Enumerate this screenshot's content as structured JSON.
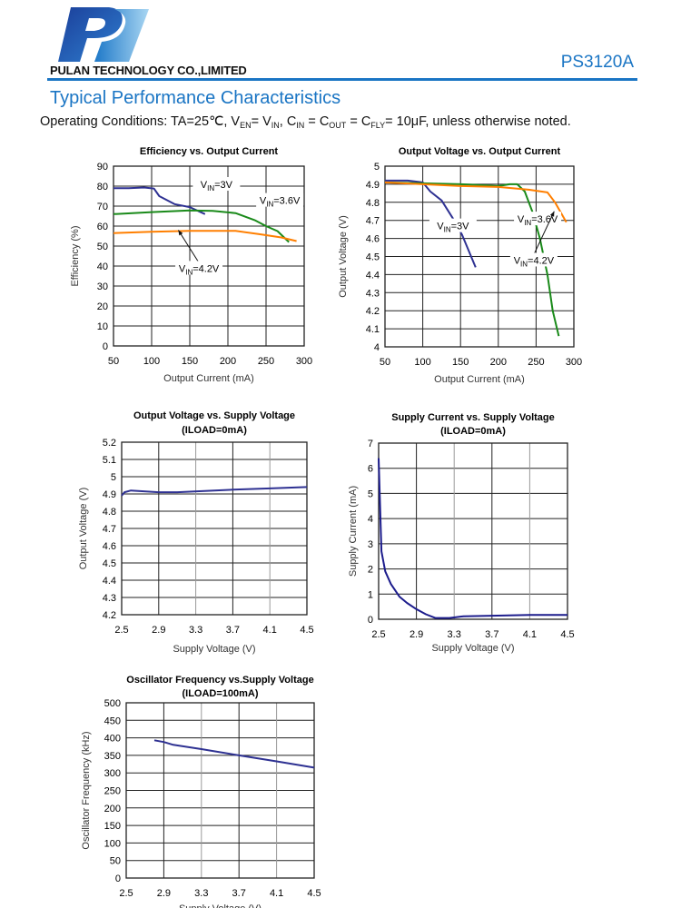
{
  "header": {
    "logo_icon": "pulan-p-logo",
    "company": "PULAN TECHNOLOGY CO.,LIMITED",
    "part_number": "PS3120A",
    "accent_color": "#1a75c4"
  },
  "section_title": "Typical Performance Characteristics",
  "operating_conditions": [
    {
      "t": "Operating Conditions: TA=25℃, V"
    },
    {
      "t": "EN",
      "sub": true
    },
    {
      "t": "= V"
    },
    {
      "t": "IN",
      "sub": true
    },
    {
      "t": ", C"
    },
    {
      "t": "IN",
      "sub": true
    },
    {
      "t": " = C"
    },
    {
      "t": "OUT",
      "sub": true
    },
    {
      "t": " = C"
    },
    {
      "t": "FLY",
      "sub": true
    },
    {
      "t": "= 10μF, unless otherwise noted."
    }
  ],
  "chart_data": [
    {
      "type": "line",
      "title": "Efficiency  vs. Output Current",
      "subtitle": "",
      "xlabel": "Output Current (mA)",
      "ylabel": "Efficiency (%)",
      "xlim": [
        50,
        300
      ],
      "ylim": [
        0,
        90
      ],
      "xticks": [
        "50",
        "100",
        "150",
        "200",
        "250",
        "300"
      ],
      "yticks": [
        "0",
        "10",
        "20",
        "30",
        "40",
        "50",
        "60",
        "70",
        "80",
        "90"
      ],
      "grid": true,
      "series": [
        {
          "name": "VIN=3V",
          "label": {
            "v": "V",
            "sub": "IN",
            "rest": "=3V"
          },
          "color": "#2e3192",
          "x": [
            50,
            70,
            90,
            103,
            110,
            130,
            150,
            170
          ],
          "y": [
            79,
            79,
            79.3,
            78.8,
            75,
            71,
            69.5,
            66
          ]
        },
        {
          "name": "VIN=3.6V",
          "label": {
            "v": "V",
            "sub": "IN",
            "rest": "=3.6V"
          },
          "color": "#1a8a1a",
          "x": [
            50,
            100,
            150,
            180,
            210,
            235,
            250,
            265,
            280
          ],
          "y": [
            66,
            67,
            67.8,
            67.6,
            66.5,
            63,
            60,
            57.5,
            52
          ]
        },
        {
          "name": "VIN=4.2V",
          "label": {
            "v": "V",
            "sub": "IN",
            "rest": "=4.2V"
          },
          "color": "#ff7f00",
          "x": [
            50,
            100,
            150,
            210,
            240,
            270,
            290
          ],
          "y": [
            56.5,
            57.2,
            57.6,
            57.6,
            56,
            54.3,
            52.5
          ]
        }
      ]
    },
    {
      "type": "line",
      "title": "Output Voltage   vs. Output Current",
      "subtitle": "",
      "xlabel": "Output Current (mA)",
      "ylabel": "Output Voltage  (V)",
      "xlim": [
        50,
        300
      ],
      "ylim": [
        4,
        5
      ],
      "xticks": [
        "50",
        "100",
        "150",
        "200",
        "250",
        "300"
      ],
      "yticks": [
        "4",
        "4.1",
        "4.2",
        "4.3",
        "4.4",
        "4.5",
        "4.6",
        "4.7",
        "4.8",
        "4.9",
        "5"
      ],
      "grid": true,
      "series": [
        {
          "name": "VIN=3V",
          "label": {
            "v": "V",
            "sub": "IN",
            "rest": "=3V"
          },
          "color": "#2e3192",
          "x": [
            50,
            80,
            100,
            110,
            125,
            140,
            152,
            170
          ],
          "y": [
            4.92,
            4.92,
            4.91,
            4.86,
            4.81,
            4.71,
            4.62,
            4.44
          ]
        },
        {
          "name": "VIN=3.6V",
          "label": {
            "v": "V",
            "sub": "IN",
            "rest": "=3.6V"
          },
          "color": "#1a8a1a",
          "x": [
            50,
            150,
            200,
            215,
            225,
            235,
            245,
            255,
            265,
            272,
            280
          ],
          "y": [
            4.91,
            4.9,
            4.89,
            4.9,
            4.9,
            4.86,
            4.75,
            4.6,
            4.4,
            4.2,
            4.06
          ]
        },
        {
          "name": "VIN=4.2V",
          "label": {
            "v": "V",
            "sub": "IN",
            "rest": "=4.2V"
          },
          "color": "#ff7f00",
          "x": [
            50,
            100,
            150,
            200,
            240,
            265,
            275,
            290
          ],
          "y": [
            4.91,
            4.9,
            4.89,
            4.885,
            4.87,
            4.855,
            4.8,
            4.69
          ]
        }
      ]
    },
    {
      "type": "line",
      "title": "Output Voltage vs. Supply Voltage",
      "subtitle": "(ILOAD=0mA)",
      "xlabel": "Supply Voltage (V)",
      "ylabel": "Output Voltage (V)",
      "xlim": [
        2.5,
        4.5
      ],
      "ylim": [
        4.2,
        5.2
      ],
      "xticks": [
        "2.5",
        "2.9",
        "3.3",
        "3.7",
        "4.1",
        "4.5"
      ],
      "yticks": [
        "4.2",
        "4.3",
        "4.4",
        "4.5",
        "4.6",
        "4.7",
        "4.8",
        "4.9",
        "5",
        "5.1",
        "5.2"
      ],
      "grid": true,
      "series": [
        {
          "color": "#2e3192",
          "x": [
            2.5,
            2.53,
            2.6,
            2.9,
            3.1,
            3.5,
            3.7,
            4.1,
            4.5
          ],
          "y": [
            4.89,
            4.91,
            4.92,
            4.91,
            4.91,
            4.92,
            4.925,
            4.932,
            4.94
          ]
        }
      ]
    },
    {
      "type": "line",
      "title": "Supply Current vs. Supply Voltage",
      "subtitle": "(ILOAD=0mA)",
      "xlabel": "Supply Voltage (V)",
      "ylabel": "Supply Current (mA)",
      "xlim": [
        2.5,
        4.5
      ],
      "ylim": [
        0,
        7
      ],
      "xticks": [
        "2.5",
        "2.9",
        "3.3",
        "3.7",
        "4.1",
        "4.5"
      ],
      "yticks": [
        "0",
        "1",
        "2",
        "3",
        "4",
        "5",
        "6",
        "7"
      ],
      "grid": true,
      "series": [
        {
          "color": "#1c1c8c",
          "x": [
            2.5,
            2.53,
            2.57,
            2.63,
            2.72,
            2.8,
            2.9,
            3.0,
            3.1,
            3.25,
            3.4,
            3.7,
            4.1,
            4.5
          ],
          "y": [
            6.4,
            2.7,
            1.9,
            1.4,
            0.9,
            0.65,
            0.4,
            0.2,
            0.05,
            0.05,
            0.12,
            0.14,
            0.17,
            0.17
          ]
        }
      ]
    },
    {
      "type": "line",
      "title": "Oscillator Frequency vs.Supply Voltage",
      "subtitle": "(ILOAD=100mA)",
      "xlabel": "Supply Voltage (V)",
      "ylabel": "Oscillator Frequency (kHz)",
      "xlim": [
        2.5,
        4.5
      ],
      "ylim": [
        0,
        500
      ],
      "xticks": [
        "2.5",
        "2.9",
        "3.3",
        "3.7",
        "4.1",
        "4.5"
      ],
      "yticks": [
        "0",
        "50",
        "100",
        "150",
        "200",
        "250",
        "300",
        "350",
        "400",
        "450",
        "500"
      ],
      "grid": true,
      "series": [
        {
          "color": "#2e3192",
          "x": [
            2.8,
            2.9,
            3.0,
            3.3,
            3.7,
            4.1,
            4.5
          ],
          "y": [
            393,
            388,
            380,
            368,
            350,
            333,
            315
          ]
        }
      ]
    }
  ]
}
